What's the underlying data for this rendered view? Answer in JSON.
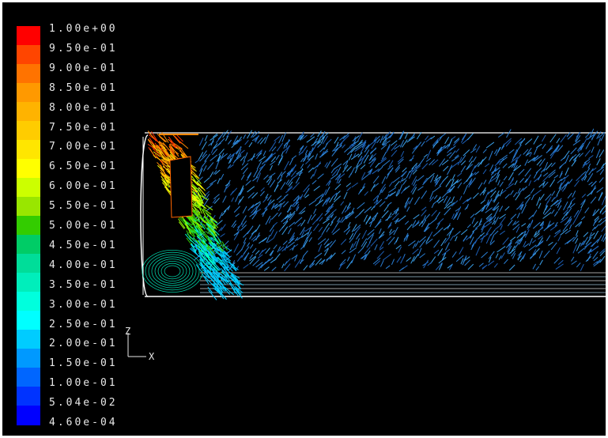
{
  "legend": {
    "levels": [
      {
        "label": "1.00e+00",
        "color": "#ff0000"
      },
      {
        "label": "9.50e-01",
        "color": "#ff4500"
      },
      {
        "label": "9.00e-01",
        "color": "#ff7300"
      },
      {
        "label": "8.50e-01",
        "color": "#ff9900"
      },
      {
        "label": "8.00e-01",
        "color": "#ffb300"
      },
      {
        "label": "7.50e-01",
        "color": "#ffcc00"
      },
      {
        "label": "7.00e-01",
        "color": "#ffe600"
      },
      {
        "label": "6.50e-01",
        "color": "#ffff00"
      },
      {
        "label": "6.00e-01",
        "color": "#ccff00"
      },
      {
        "label": "5.50e-01",
        "color": "#99e600"
      },
      {
        "label": "5.00e-01",
        "color": "#33cc00"
      },
      {
        "label": "4.50e-01",
        "color": "#00cc66"
      },
      {
        "label": "4.00e-01",
        "color": "#00dd99"
      },
      {
        "label": "3.50e-01",
        "color": "#00eebb"
      },
      {
        "label": "3.00e-01",
        "color": "#00ffdd"
      },
      {
        "label": "2.50e-01",
        "color": "#00ffff"
      },
      {
        "label": "2.00e-01",
        "color": "#00ccff"
      },
      {
        "label": "1.50e-01",
        "color": "#0099ff"
      },
      {
        "label": "1.00e-01",
        "color": "#0066ff"
      },
      {
        "label": "5.04e-02",
        "color": "#0033ff"
      },
      {
        "label": "4.60e-04",
        "color": "#0000ff"
      }
    ]
  },
  "axes": {
    "vertical": "Z",
    "horizontal": "X"
  },
  "colors": {
    "background": "#000000",
    "geometry": "#ffffff",
    "text": "#e8e8e8"
  }
}
